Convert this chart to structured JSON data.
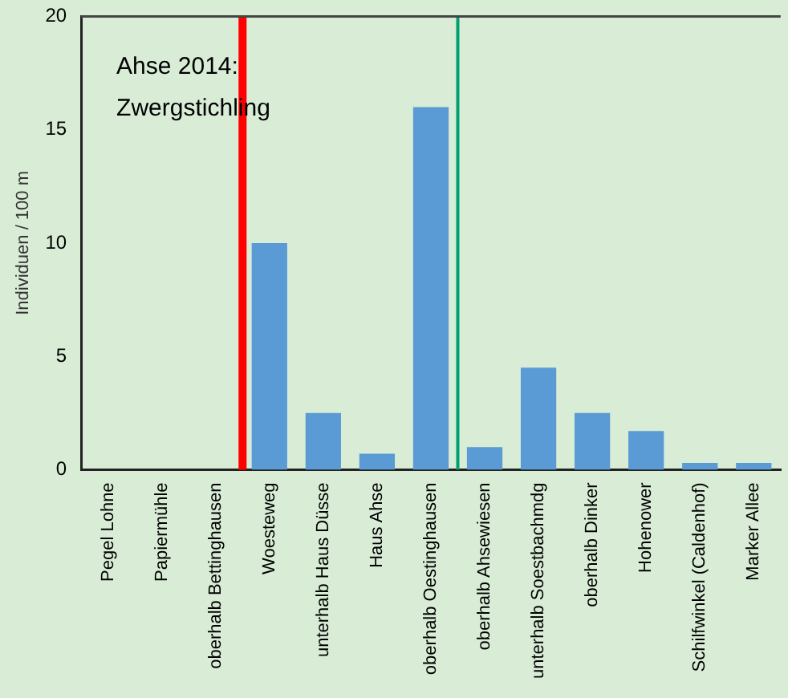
{
  "chart_data": {
    "type": "bar",
    "ylabel": "Individuen / 100 m",
    "annotations": [
      "Ahse 2014:\nZwergstichling"
    ],
    "categories": [
      "Pegel Lohne",
      "Papiermühle",
      "oberhalb Bettinghausen",
      "Woesteweg",
      "unterhalb Haus Düsse",
      "Haus Ahse",
      "oberhalb Oestinghausen",
      "oberhalb Ahsewiesen",
      "unterhalb Soestbachmdg",
      "oberhalb Dinker",
      "Hohenower",
      "Schilfwinkel (Caldenhof)",
      "Marker Allee"
    ],
    "values": [
      0,
      0,
      0,
      10,
      2.5,
      0.7,
      16,
      1,
      4.5,
      2.5,
      1.7,
      0.3,
      0.3
    ],
    "color": "#5b9bd5",
    "ylim": [
      0,
      20
    ],
    "yticks": [
      0,
      5,
      10,
      15,
      20
    ],
    "grid": false,
    "legend": false,
    "ref_lines": [
      {
        "axis": "x",
        "value": "Woesteweg",
        "color": "#ff0000"
      },
      {
        "axis": "x",
        "value": "oberhalb Ahsewiesen",
        "color": "#00a070"
      }
    ]
  }
}
